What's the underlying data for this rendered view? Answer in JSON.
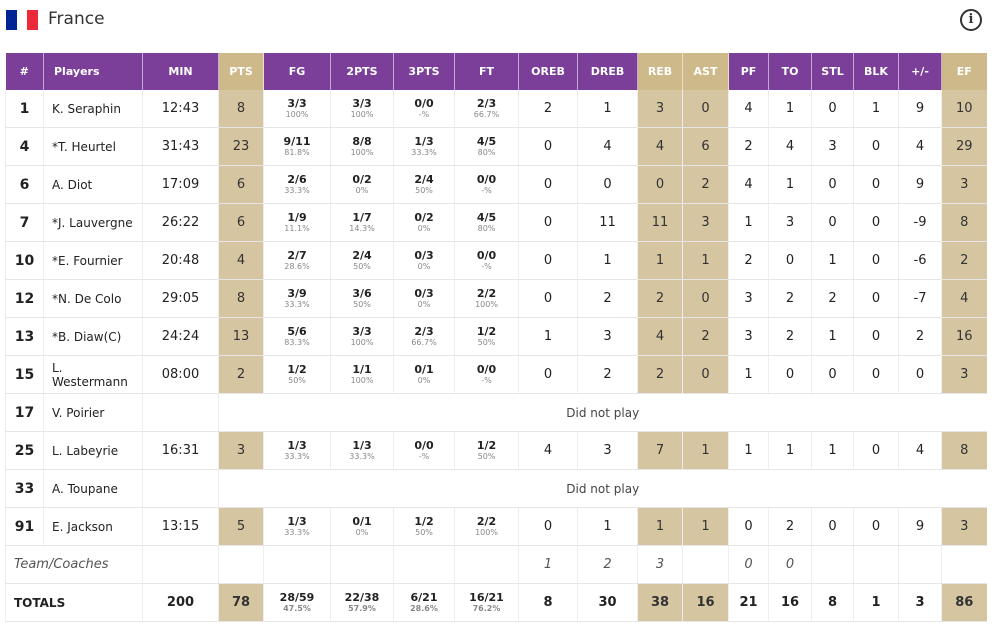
{
  "team": {
    "name": "France",
    "flag_colors": [
      "#002395",
      "#ffffff",
      "#ed2939"
    ],
    "info_icon": "info-icon",
    "info_glyph": "i"
  },
  "colors": {
    "header_purple": "#7b3f99",
    "header_gold": "#cdb98a",
    "cell_gold": "#d5c6a1"
  },
  "columns": [
    "#",
    "Players",
    "MIN",
    "PTS",
    "FG",
    "2PTS",
    "3PTS",
    "FT",
    "OREB",
    "DREB",
    "REB",
    "AST",
    "PF",
    "TO",
    "STL",
    "BLK",
    "+/-",
    "EF"
  ],
  "players": [
    {
      "num": "1",
      "name": "K. Seraphin",
      "min": "12:43",
      "pts": "8",
      "fg": "3/3",
      "fg_pct": "100%",
      "two": "3/3",
      "two_pct": "100%",
      "three": "0/0",
      "three_pct": "-%",
      "ft": "2/3",
      "ft_pct": "66.7%",
      "oreb": "2",
      "dreb": "1",
      "reb": "3",
      "ast": "0",
      "pf": "4",
      "to": "1",
      "stl": "0",
      "blk": "1",
      "pm": "9",
      "ef": "10"
    },
    {
      "num": "4",
      "name": "*T. Heurtel",
      "min": "31:43",
      "pts": "23",
      "fg": "9/11",
      "fg_pct": "81.8%",
      "two": "8/8",
      "two_pct": "100%",
      "three": "1/3",
      "three_pct": "33.3%",
      "ft": "4/5",
      "ft_pct": "80%",
      "oreb": "0",
      "dreb": "4",
      "reb": "4",
      "ast": "6",
      "pf": "2",
      "to": "4",
      "stl": "3",
      "blk": "0",
      "pm": "4",
      "ef": "29"
    },
    {
      "num": "6",
      "name": "A. Diot",
      "min": "17:09",
      "pts": "6",
      "fg": "2/6",
      "fg_pct": "33.3%",
      "two": "0/2",
      "two_pct": "0%",
      "three": "2/4",
      "three_pct": "50%",
      "ft": "0/0",
      "ft_pct": "-%",
      "oreb": "0",
      "dreb": "0",
      "reb": "0",
      "ast": "2",
      "pf": "4",
      "to": "1",
      "stl": "0",
      "blk": "0",
      "pm": "9",
      "ef": "3"
    },
    {
      "num": "7",
      "name": "*J. Lauvergne",
      "min": "26:22",
      "pts": "6",
      "fg": "1/9",
      "fg_pct": "11.1%",
      "two": "1/7",
      "two_pct": "14.3%",
      "three": "0/2",
      "three_pct": "0%",
      "ft": "4/5",
      "ft_pct": "80%",
      "oreb": "0",
      "dreb": "11",
      "reb": "11",
      "ast": "3",
      "pf": "1",
      "to": "3",
      "stl": "0",
      "blk": "0",
      "pm": "-9",
      "ef": "8"
    },
    {
      "num": "10",
      "name": "*E. Fournier",
      "min": "20:48",
      "pts": "4",
      "fg": "2/7",
      "fg_pct": "28.6%",
      "two": "2/4",
      "two_pct": "50%",
      "three": "0/3",
      "three_pct": "0%",
      "ft": "0/0",
      "ft_pct": "-%",
      "oreb": "0",
      "dreb": "1",
      "reb": "1",
      "ast": "1",
      "pf": "2",
      "to": "0",
      "stl": "1",
      "blk": "0",
      "pm": "-6",
      "ef": "2"
    },
    {
      "num": "12",
      "name": "*N. De Colo",
      "min": "29:05",
      "pts": "8",
      "fg": "3/9",
      "fg_pct": "33.3%",
      "two": "3/6",
      "two_pct": "50%",
      "three": "0/3",
      "three_pct": "0%",
      "ft": "2/2",
      "ft_pct": "100%",
      "oreb": "0",
      "dreb": "2",
      "reb": "2",
      "ast": "0",
      "pf": "3",
      "to": "2",
      "stl": "2",
      "blk": "0",
      "pm": "-7",
      "ef": "4"
    },
    {
      "num": "13",
      "name": "*B. Diaw(C)",
      "min": "24:24",
      "pts": "13",
      "fg": "5/6",
      "fg_pct": "83.3%",
      "two": "3/3",
      "two_pct": "100%",
      "three": "2/3",
      "three_pct": "66.7%",
      "ft": "1/2",
      "ft_pct": "50%",
      "oreb": "1",
      "dreb": "3",
      "reb": "4",
      "ast": "2",
      "pf": "3",
      "to": "2",
      "stl": "1",
      "blk": "0",
      "pm": "2",
      "ef": "16"
    },
    {
      "num": "15",
      "name": "L. Westermann",
      "min": "08:00",
      "pts": "2",
      "fg": "1/2",
      "fg_pct": "50%",
      "two": "1/1",
      "two_pct": "100%",
      "three": "0/1",
      "three_pct": "0%",
      "ft": "0/0",
      "ft_pct": "-%",
      "oreb": "0",
      "dreb": "2",
      "reb": "2",
      "ast": "0",
      "pf": "1",
      "to": "0",
      "stl": "0",
      "blk": "0",
      "pm": "0",
      "ef": "3"
    },
    {
      "num": "17",
      "name": "V. Poirier",
      "dnp": "Did not play"
    },
    {
      "num": "25",
      "name": "L. Labeyrie",
      "min": "16:31",
      "pts": "3",
      "fg": "1/3",
      "fg_pct": "33.3%",
      "two": "1/3",
      "two_pct": "33.3%",
      "three": "0/0",
      "three_pct": "-%",
      "ft": "1/2",
      "ft_pct": "50%",
      "oreb": "4",
      "dreb": "3",
      "reb": "7",
      "ast": "1",
      "pf": "1",
      "to": "1",
      "stl": "1",
      "blk": "0",
      "pm": "4",
      "ef": "8"
    },
    {
      "num": "33",
      "name": "A. Toupane",
      "dnp": "Did not play"
    },
    {
      "num": "91",
      "name": "E. Jackson",
      "min": "13:15",
      "pts": "5",
      "fg": "1/3",
      "fg_pct": "33.3%",
      "two": "0/1",
      "two_pct": "0%",
      "three": "1/2",
      "three_pct": "50%",
      "ft": "2/2",
      "ft_pct": "100%",
      "oreb": "0",
      "dreb": "1",
      "reb": "1",
      "ast": "1",
      "pf": "0",
      "to": "2",
      "stl": "0",
      "blk": "0",
      "pm": "9",
      "ef": "3"
    }
  ],
  "team_coaches": {
    "label": "Team/Coaches",
    "oreb": "1",
    "dreb": "2",
    "reb": "3",
    "pf": "0",
    "to": "0"
  },
  "totals": {
    "label": "TOTALS",
    "min": "200",
    "pts": "78",
    "fg": "28/59",
    "fg_pct": "47.5%",
    "two": "22/38",
    "two_pct": "57.9%",
    "three": "6/21",
    "three_pct": "28.6%",
    "ft": "16/21",
    "ft_pct": "76.2%",
    "oreb": "8",
    "dreb": "30",
    "reb": "38",
    "ast": "16",
    "pf": "21",
    "to": "16",
    "stl": "8",
    "blk": "1",
    "pm": "3",
    "ef": "86"
  }
}
